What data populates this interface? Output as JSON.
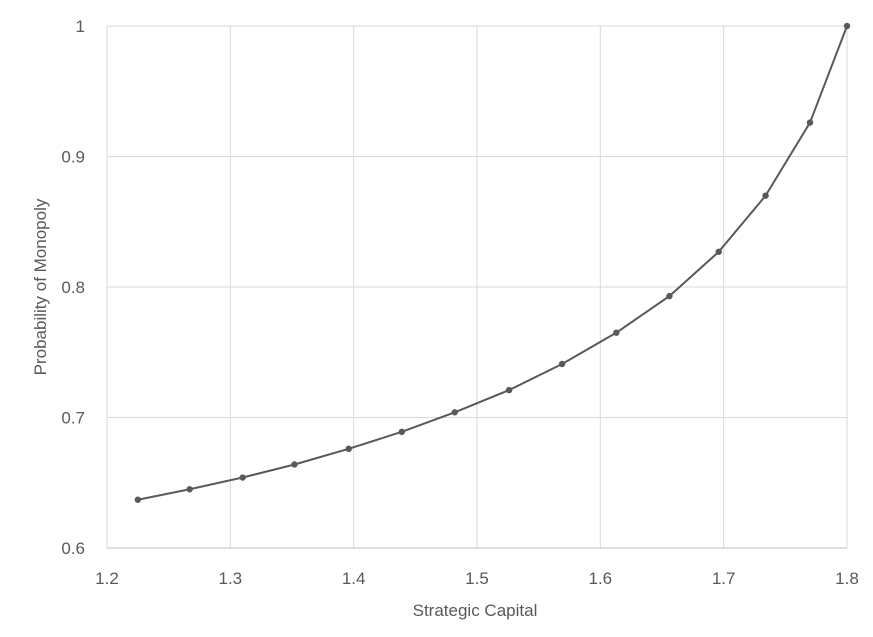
{
  "chart_data": {
    "type": "line",
    "title": "",
    "xlabel": "Strategic Capital",
    "ylabel": "Probability of Monopoly",
    "xlim": [
      1.2,
      1.8
    ],
    "ylim": [
      0.6,
      1.0
    ],
    "x_ticks": [
      "1.2",
      "1.3",
      "1.4",
      "1.5",
      "1.6",
      "1.7",
      "1.8"
    ],
    "y_ticks": [
      "0.6",
      "0.7",
      "0.8",
      "0.9",
      "1"
    ],
    "grid": true,
    "legend": "none",
    "series": [
      {
        "color": "#595959",
        "marker": "circle",
        "x": [
          1.225,
          1.267,
          1.31,
          1.352,
          1.396,
          1.439,
          1.482,
          1.526,
          1.569,
          1.613,
          1.656,
          1.696,
          1.734,
          1.77,
          1.8
        ],
        "y": [
          0.637,
          0.645,
          0.654,
          0.664,
          0.676,
          0.689,
          0.704,
          0.721,
          0.741,
          0.765,
          0.793,
          0.827,
          0.87,
          0.926,
          1.0
        ]
      }
    ]
  }
}
